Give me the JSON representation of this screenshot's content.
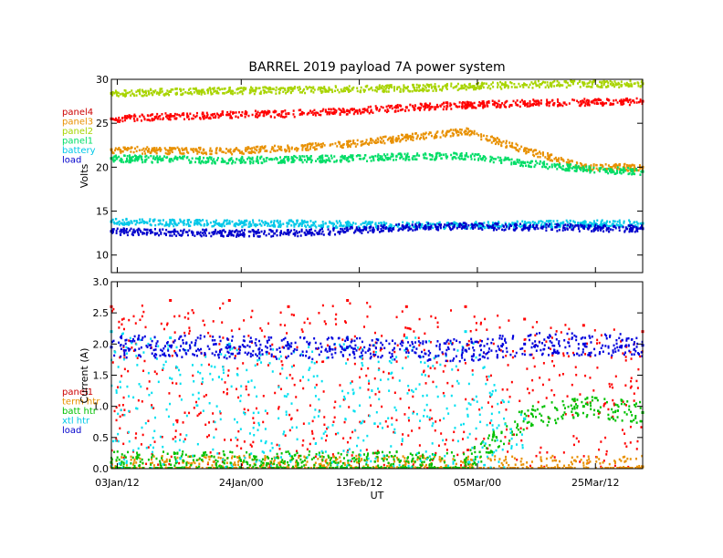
{
  "figure": {
    "title": "BARREL 2019 payload 7A power system",
    "xlabel": "UT"
  },
  "chart_data": [
    {
      "type": "scatter",
      "panel": "top",
      "ylabel": "Volts",
      "ylim": [
        8,
        30
      ],
      "yticks": [
        10,
        15,
        20,
        25,
        30
      ],
      "xlim": [
        0,
        90
      ],
      "xticks": [
        {
          "x": 1,
          "label": "03Jan/12"
        },
        {
          "x": 22,
          "label": "24Jan/00"
        },
        {
          "x": 42,
          "label": "13Feb/12"
        },
        {
          "x": 62,
          "label": "05Mar/00"
        },
        {
          "x": 82,
          "label": "25Mar/12"
        }
      ],
      "legend": [
        {
          "label": "panel4",
          "color": "#cc0000"
        },
        {
          "label": "panel3",
          "color": "#e89000"
        },
        {
          "label": "panel2",
          "color": "#a8d400"
        },
        {
          "label": "panel1",
          "color": "#00dd66"
        },
        {
          "label": "battery",
          "color": "#00c8e8"
        },
        {
          "label": "load",
          "color": "#0000cc"
        }
      ],
      "series": [
        {
          "name": "panel4",
          "color": "#ff0000",
          "x": [
            0,
            10,
            20,
            30,
            40,
            50,
            60,
            70,
            80,
            90
          ],
          "y": [
            25.5,
            25.8,
            26.0,
            26.1,
            26.4,
            26.8,
            27.1,
            27.3,
            27.4,
            27.5
          ]
        },
        {
          "name": "panel3",
          "color": "#e89000",
          "x": [
            0,
            10,
            20,
            30,
            40,
            50,
            60,
            70,
            80,
            90
          ],
          "y": [
            22.0,
            21.9,
            21.8,
            22.2,
            22.6,
            23.4,
            24.1,
            22.0,
            20.0,
            20.0
          ]
        },
        {
          "name": "panel2",
          "color": "#a8d400",
          "x": [
            0,
            10,
            20,
            30,
            40,
            50,
            60,
            70,
            80,
            90
          ],
          "y": [
            28.4,
            28.6,
            28.7,
            28.8,
            28.9,
            29.0,
            29.2,
            29.4,
            29.5,
            29.5
          ]
        },
        {
          "name": "panel1",
          "color": "#00dd66",
          "x": [
            0,
            10,
            20,
            30,
            40,
            50,
            60,
            70,
            80,
            90
          ],
          "y": [
            21.0,
            20.9,
            20.8,
            20.9,
            21.0,
            21.2,
            21.3,
            20.5,
            19.8,
            19.5
          ]
        },
        {
          "name": "battery",
          "color": "#00c8e8",
          "x": [
            0,
            10,
            20,
            30,
            40,
            50,
            60,
            70,
            80,
            90
          ],
          "y": [
            13.8,
            13.7,
            13.6,
            13.6,
            13.5,
            13.4,
            13.4,
            13.5,
            13.6,
            13.6
          ]
        },
        {
          "name": "load",
          "color": "#0000cc",
          "x": [
            0,
            10,
            20,
            30,
            40,
            50,
            60,
            70,
            80,
            90
          ],
          "y": [
            12.7,
            12.6,
            12.5,
            12.5,
            12.8,
            13.2,
            13.3,
            13.2,
            13.1,
            13.0
          ]
        }
      ]
    },
    {
      "type": "scatter",
      "panel": "bottom",
      "ylabel": "Current (A)",
      "ylim": [
        0,
        3.0
      ],
      "yticks": [
        0.0,
        0.5,
        1.0,
        1.5,
        2.0,
        2.5,
        3.0
      ],
      "xlim": [
        0,
        90
      ],
      "legend": [
        {
          "label": "panel1",
          "color": "#cc0000"
        },
        {
          "label": "term htr",
          "color": "#e89000"
        },
        {
          "label": "batt htr",
          "color": "#00c000"
        },
        {
          "label": "xtl htr",
          "color": "#00c8e8"
        },
        {
          "label": "load",
          "color": "#0000cc"
        }
      ],
      "series": [
        {
          "name": "panel1",
          "color": "#ff0000",
          "x": [
            0,
            10,
            20,
            30,
            40,
            50,
            60,
            70,
            80,
            90
          ],
          "y": [
            2.6,
            2.7,
            2.7,
            2.6,
            2.7,
            2.6,
            2.6,
            2.4,
            2.3,
            2.2
          ]
        },
        {
          "name": "term htr",
          "color": "#e89000",
          "x": [
            0,
            45,
            90
          ],
          "y": [
            0.03,
            0.03,
            0.03
          ]
        },
        {
          "name": "batt htr",
          "color": "#00c000",
          "x": [
            0,
            60,
            70,
            80,
            90
          ],
          "y": [
            0.1,
            0.1,
            0.8,
            1.0,
            0.9
          ]
        },
        {
          "name": "xtl htr",
          "color": "#00e0f0",
          "x": [
            0,
            10,
            20,
            30,
            40,
            50,
            60,
            70
          ],
          "y": [
            2.2,
            2.1,
            2.0,
            2.0,
            2.1,
            2.1,
            2.2,
            0.8
          ]
        },
        {
          "name": "load",
          "color": "#0000dd",
          "x": [
            0,
            10,
            20,
            30,
            40,
            50,
            60,
            70,
            80,
            90
          ],
          "y": [
            1.95,
            1.97,
            1.95,
            1.93,
            1.95,
            1.92,
            1.9,
            2.0,
            2.0,
            1.98
          ]
        }
      ]
    }
  ]
}
